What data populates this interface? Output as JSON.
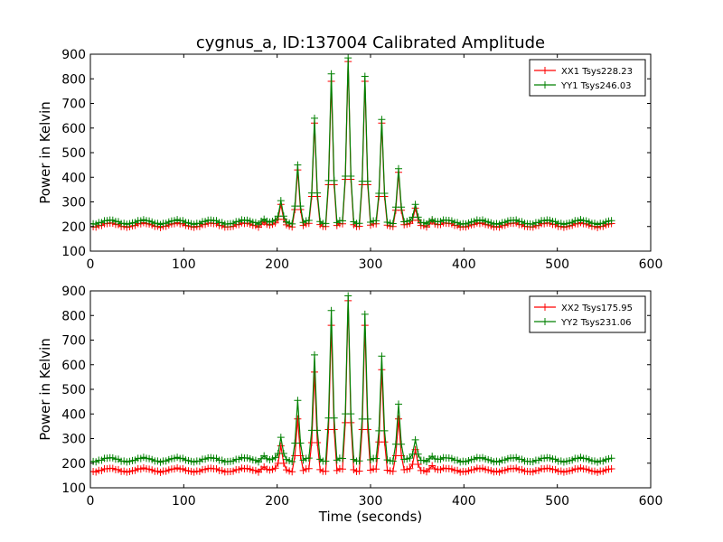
{
  "figure_title": "cygnus_a, ID:137004 Calibrated Amplitude",
  "chart_data": [
    {
      "type": "line",
      "title": "cygnus_a, ID:137004 Calibrated Amplitude",
      "xlabel": "",
      "ylabel": "Power in Kelvin",
      "xlim": [
        0,
        600
      ],
      "ylim": [
        100,
        900
      ],
      "xticks": [
        0,
        100,
        200,
        300,
        400,
        500,
        600
      ],
      "yticks": [
        100,
        200,
        300,
        400,
        500,
        600,
        700,
        800,
        900
      ],
      "grid": false,
      "legend_position": "top-right",
      "baseline_period_s": 36,
      "sample_interval_s": 3,
      "x_range": [
        0,
        558
      ],
      "series": [
        {
          "name": "XX1 Tsys228.23",
          "color": "#ff0000",
          "marker": "+",
          "baseline": 206,
          "baseline_amplitude": 8,
          "peaks": [
            {
              "x": 186,
              "y": 218
            },
            {
              "x": 204,
              "y": 290
            },
            {
              "x": 222,
              "y": 430
            },
            {
              "x": 240,
              "y": 620
            },
            {
              "x": 258,
              "y": 790
            },
            {
              "x": 276,
              "y": 870
            },
            {
              "x": 294,
              "y": 790
            },
            {
              "x": 312,
              "y": 620
            },
            {
              "x": 330,
              "y": 420
            },
            {
              "x": 348,
              "y": 275
            },
            {
              "x": 366,
              "y": 222
            }
          ]
        },
        {
          "name": "YY1 Tsys246.03",
          "color": "#008000",
          "marker": "+",
          "baseline": 218,
          "baseline_amplitude": 8,
          "peaks": [
            {
              "x": 186,
              "y": 230
            },
            {
              "x": 204,
              "y": 305
            },
            {
              "x": 222,
              "y": 450
            },
            {
              "x": 240,
              "y": 640
            },
            {
              "x": 258,
              "y": 820
            },
            {
              "x": 276,
              "y": 885
            },
            {
              "x": 294,
              "y": 810
            },
            {
              "x": 312,
              "y": 635
            },
            {
              "x": 330,
              "y": 435
            },
            {
              "x": 348,
              "y": 290
            },
            {
              "x": 366,
              "y": 228
            }
          ]
        }
      ]
    },
    {
      "type": "line",
      "title": "",
      "xlabel": "Time (seconds)",
      "ylabel": "Power in Kelvin",
      "xlim": [
        0,
        600
      ],
      "ylim": [
        100,
        900
      ],
      "xticks": [
        0,
        100,
        200,
        300,
        400,
        500,
        600
      ],
      "yticks": [
        100,
        200,
        300,
        400,
        500,
        600,
        700,
        800,
        900
      ],
      "grid": false,
      "legend_position": "top-right",
      "baseline_period_s": 36,
      "sample_interval_s": 3,
      "x_range": [
        0,
        558
      ],
      "series": [
        {
          "name": "XX2 Tsys175.95",
          "color": "#ff0000",
          "marker": "+",
          "baseline": 172,
          "baseline_amplitude": 7,
          "peaks": [
            {
              "x": 186,
              "y": 185
            },
            {
              "x": 204,
              "y": 270
            },
            {
              "x": 222,
              "y": 380
            },
            {
              "x": 240,
              "y": 570
            },
            {
              "x": 258,
              "y": 760
            },
            {
              "x": 276,
              "y": 860
            },
            {
              "x": 294,
              "y": 760
            },
            {
              "x": 312,
              "y": 580
            },
            {
              "x": 330,
              "y": 380
            },
            {
              "x": 348,
              "y": 255
            },
            {
              "x": 366,
              "y": 190
            }
          ]
        },
        {
          "name": "YY2 Tsys231.06",
          "color": "#008000",
          "marker": "+",
          "baseline": 214,
          "baseline_amplitude": 8,
          "peaks": [
            {
              "x": 186,
              "y": 230
            },
            {
              "x": 204,
              "y": 305
            },
            {
              "x": 222,
              "y": 455
            },
            {
              "x": 240,
              "y": 640
            },
            {
              "x": 258,
              "y": 820
            },
            {
              "x": 276,
              "y": 880
            },
            {
              "x": 294,
              "y": 805
            },
            {
              "x": 312,
              "y": 635
            },
            {
              "x": 330,
              "y": 440
            },
            {
              "x": 348,
              "y": 295
            },
            {
              "x": 366,
              "y": 228
            }
          ]
        }
      ]
    }
  ]
}
